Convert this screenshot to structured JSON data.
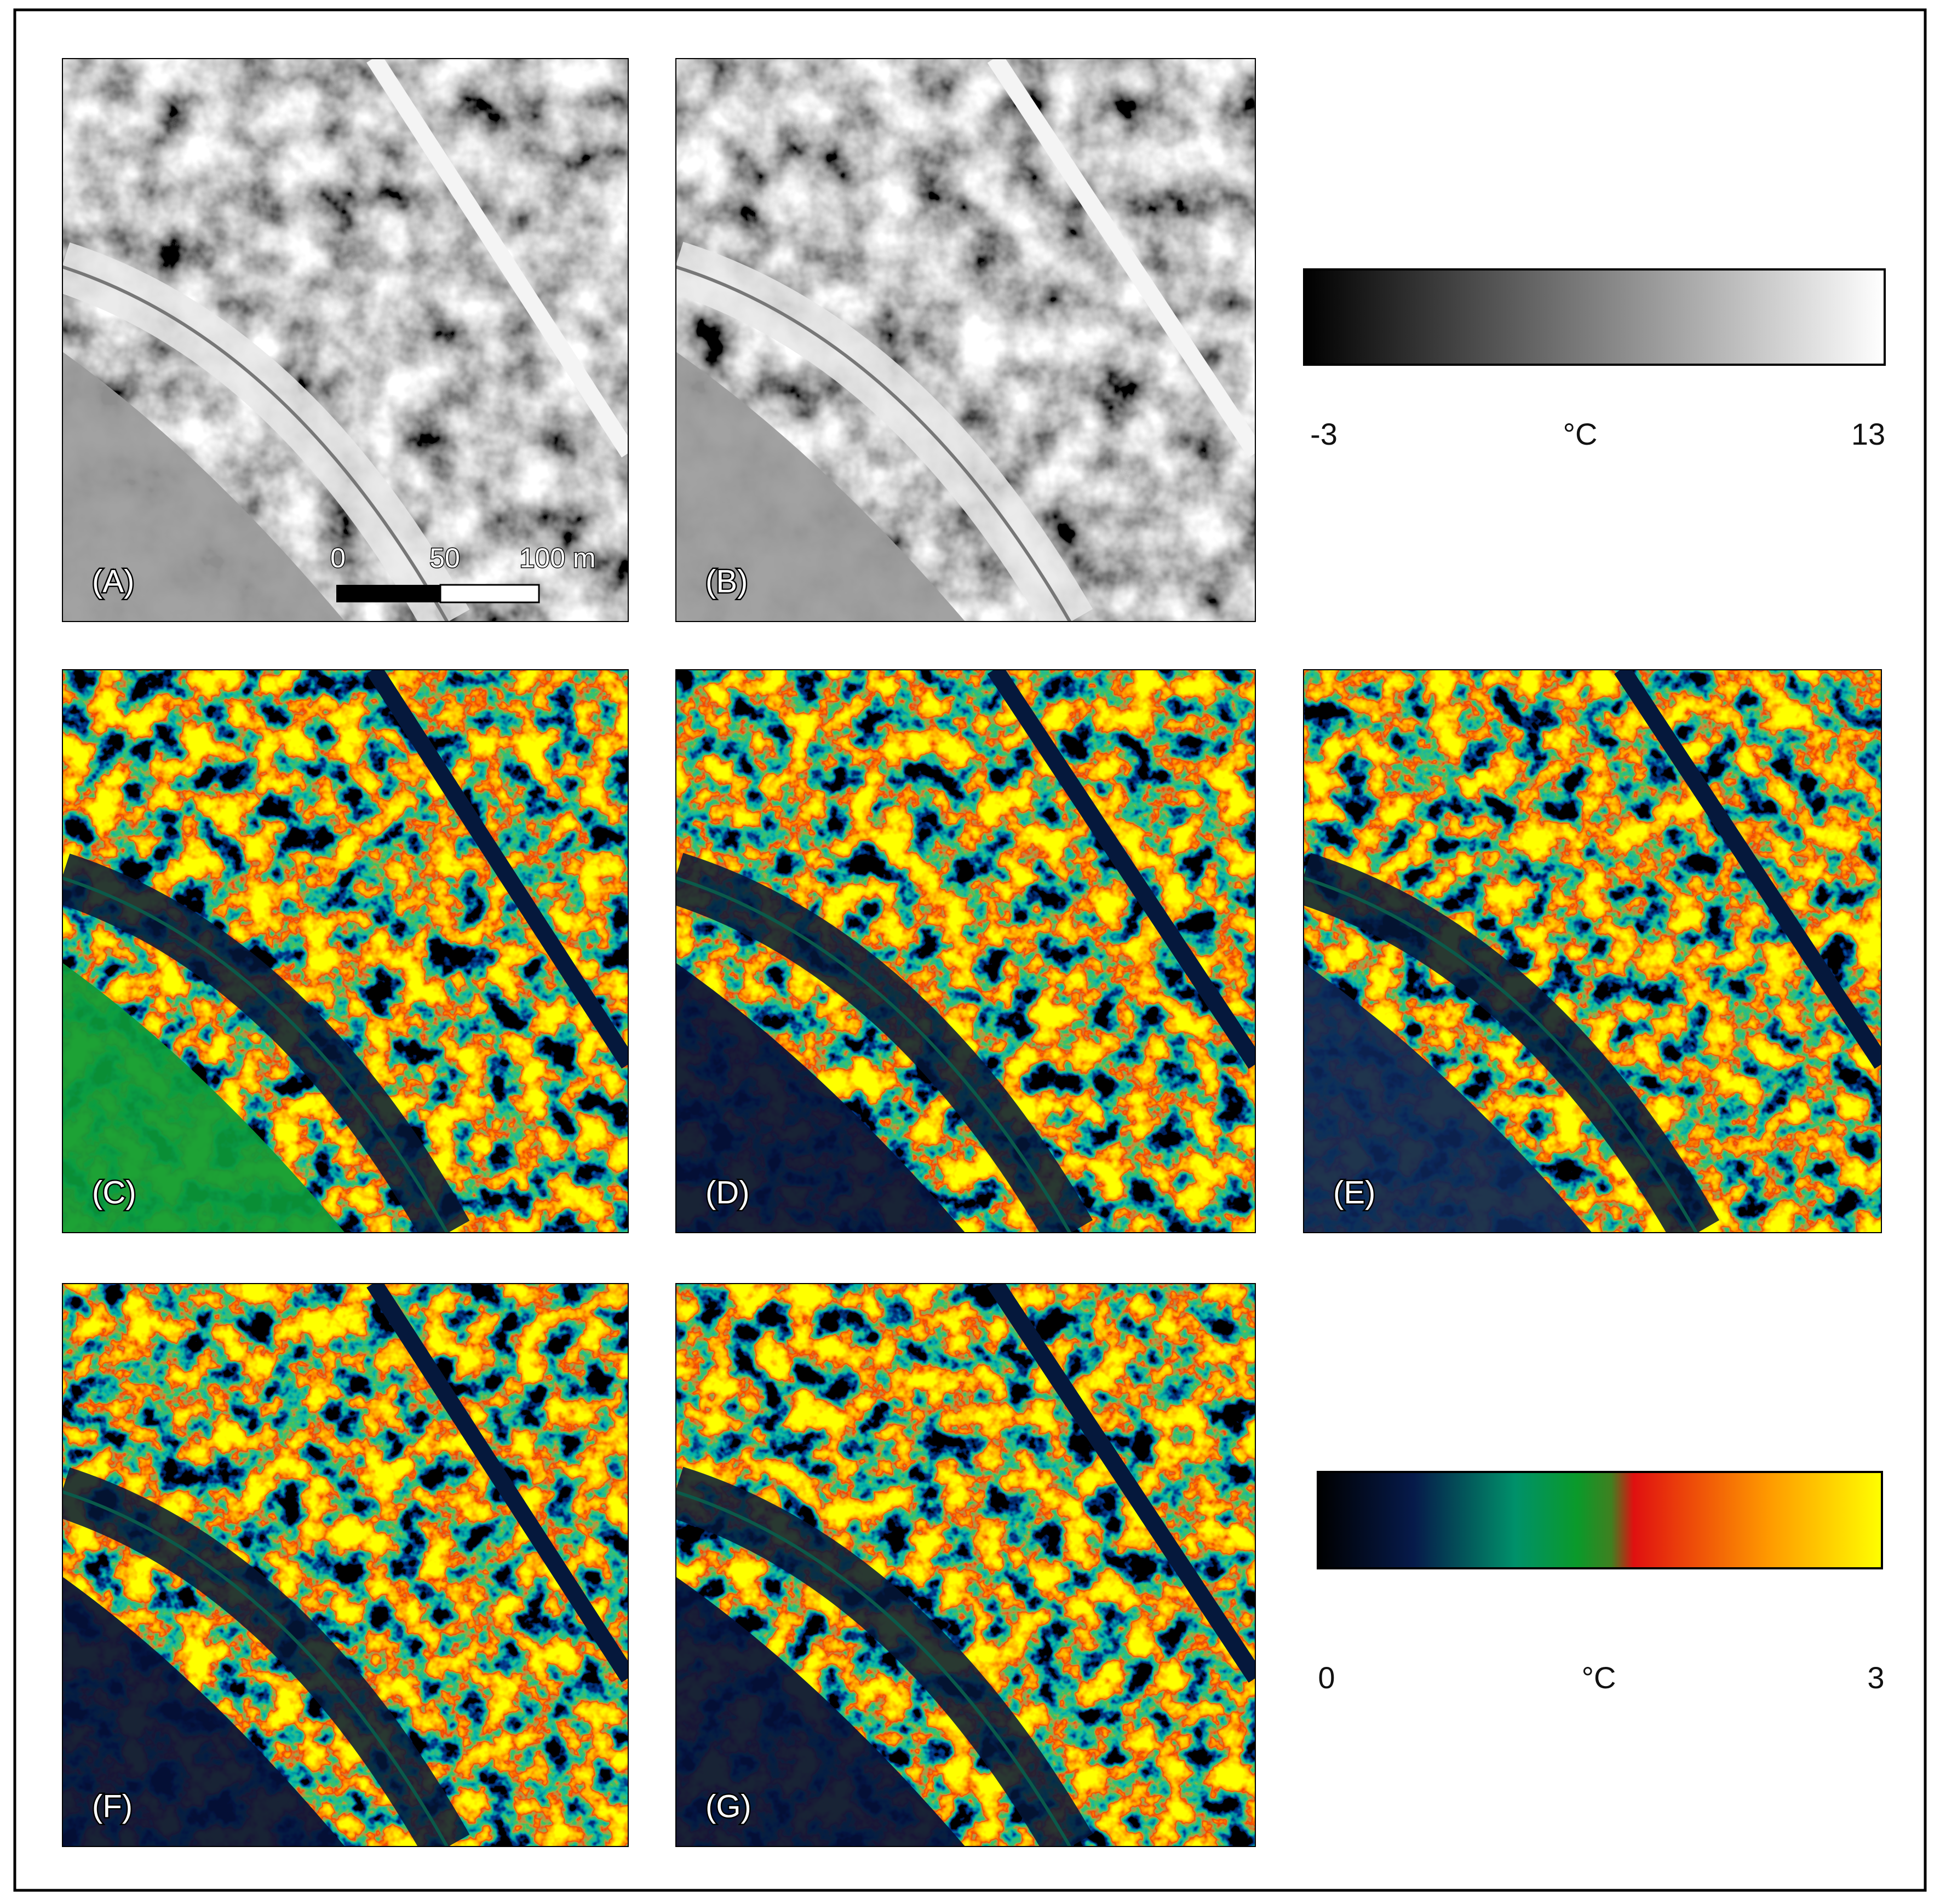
{
  "panels": [
    {
      "label": "(A)"
    },
    {
      "label": "(B)"
    },
    {
      "label": "(C)"
    },
    {
      "label": "(D)"
    },
    {
      "label": "(E)"
    },
    {
      "label": "(F)"
    },
    {
      "label": "(G)"
    }
  ],
  "scale_bar": {
    "labels": [
      "0",
      "50",
      "100 m"
    ]
  },
  "colorbars": [
    {
      "min": -3,
      "unit": "°C",
      "max": 13
    },
    {
      "min": 0,
      "unit": "°C",
      "max": 3
    }
  ]
}
